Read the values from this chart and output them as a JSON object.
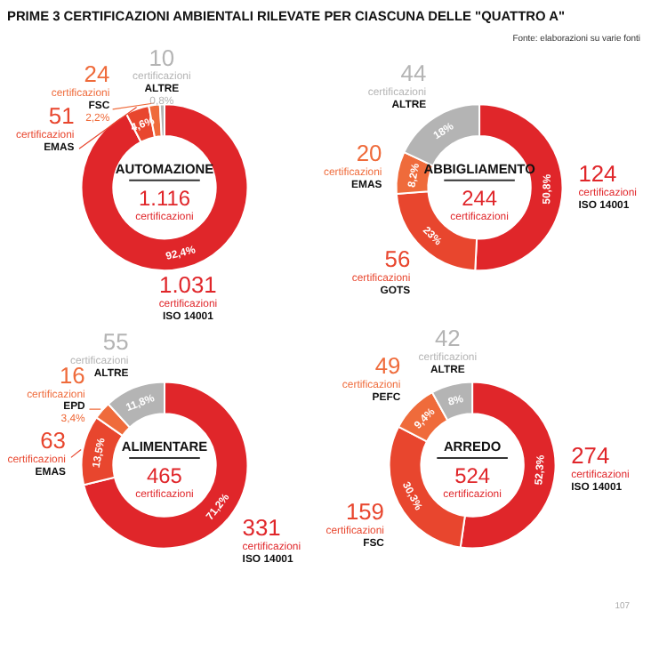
{
  "chart_data": [
    {
      "type": "donut",
      "title": "AUTOMAZIONE",
      "categories": [
        "ISO 14001",
        "EMAS",
        "FSC",
        "ALTRE"
      ],
      "values": [
        1031,
        51,
        24,
        10
      ],
      "colors": [
        "#e0262a",
        "#e8462e",
        "#ef6b3b",
        "#b4b4b4"
      ],
      "value_labels": [
        "1.031",
        "51",
        "24",
        "10"
      ],
      "annotations": [
        "92,4%",
        "4,6%",
        "2,2%",
        "0,8%",
        "1.116",
        "certificazioni",
        "PRIME 3 CERTIFICAZIONI AMBIENTALI RILEVATE PER CIASCUNA DELLE \"QUATTRO A\""
      ]
    },
    {
      "type": "donut",
      "title": "ABBIGLIAMENTO",
      "categories": [
        "ISO 14001",
        "GOTS",
        "EMAS",
        "ALTRE"
      ],
      "values": [
        124,
        56,
        20,
        44
      ],
      "colors": [
        "#e0262a",
        "#e8462e",
        "#ef6b3b",
        "#b4b4b4"
      ],
      "value_labels": [
        "124",
        "56",
        "20",
        "44"
      ],
      "annotations": [
        "50,8%",
        "23%",
        "8,2%",
        "18%",
        "244",
        "certificazioni",
        "Fonte: elaborazioni su varie fonti"
      ]
    },
    {
      "type": "donut",
      "title": "ALIMENTARE",
      "categories": [
        "ISO 14001",
        "EMAS",
        "EPD",
        "ALTRE"
      ],
      "values": [
        331,
        63,
        16,
        55
      ],
      "colors": [
        "#e0262a",
        "#e8462e",
        "#ef6b3b",
        "#b4b4b4"
      ],
      "value_labels": [
        "331",
        "63",
        "16",
        "55"
      ],
      "annotations": [
        "71,2%",
        "13,5%",
        "3,4%",
        "11,8%",
        "465",
        "certificazioni"
      ]
    },
    {
      "type": "donut",
      "title": "ARREDO",
      "categories": [
        "ISO 14001",
        "FSC",
        "PEFC",
        "ALTRE"
      ],
      "values": [
        274,
        159,
        49,
        42
      ],
      "colors": [
        "#e0262a",
        "#e8462e",
        "#ef6b3b",
        "#b4b4b4"
      ],
      "value_labels": [
        "274",
        "159",
        "49",
        "42"
      ],
      "annotations": [
        "52,3%",
        "30,3%",
        "9,4%",
        "8%",
        "524",
        "certificazioni",
        "107"
      ]
    }
  ]
}
